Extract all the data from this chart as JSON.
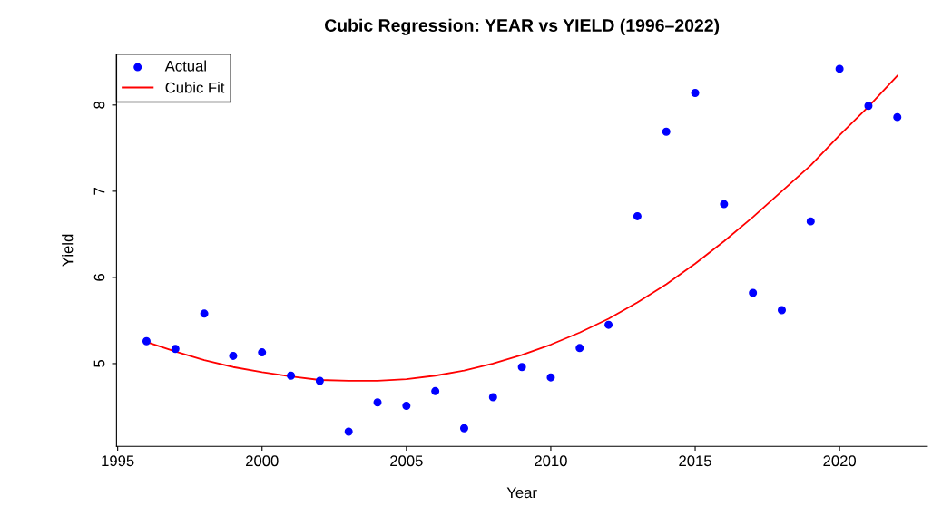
{
  "chart_data": {
    "type": "scatter",
    "title": "Cubic Regression: YEAR vs YIELD (1996–2022)",
    "xlabel": "Year",
    "ylabel": "Yield",
    "xlim": [
      1994.96,
      2023.04
    ],
    "ylim": [
      4.04,
      8.59
    ],
    "xticks": [
      1995,
      2000,
      2005,
      2010,
      2015,
      2020
    ],
    "yticks": [
      5,
      6,
      7,
      8
    ],
    "grid": false,
    "legend": "top left",
    "series": [
      {
        "name": "Actual",
        "marker": "circle",
        "color": "#0000ff",
        "x": [
          1996,
          1997,
          1998,
          1999,
          2000,
          2001,
          2002,
          2003,
          2004,
          2005,
          2006,
          2007,
          2008,
          2009,
          2010,
          2011,
          2012,
          2013,
          2014,
          2015,
          2016,
          2017,
          2018,
          2019,
          2020,
          2021,
          2022
        ],
        "values": [
          5.26,
          5.17,
          5.58,
          5.09,
          5.13,
          4.86,
          4.8,
          4.21,
          4.55,
          4.51,
          4.68,
          4.25,
          4.61,
          4.96,
          4.84,
          5.18,
          5.45,
          6.71,
          7.69,
          8.14,
          6.85,
          5.82,
          5.62,
          6.65,
          8.42,
          7.99,
          7.86
        ]
      },
      {
        "name": "Cubic Fit",
        "type": "line",
        "marker": "none",
        "line_style": "solid",
        "color": "#ff0000",
        "x": [
          1996,
          1997,
          1998,
          1999,
          2000,
          2001,
          2002,
          2003,
          2004,
          2005,
          2006,
          2007,
          2008,
          2009,
          2010,
          2011,
          2012,
          2013,
          2014,
          2015,
          2016,
          2017,
          2018,
          2019,
          2020,
          2021,
          2022
        ],
        "values": [
          5.25,
          5.14,
          5.04,
          4.96,
          4.9,
          4.85,
          4.81,
          4.8,
          4.8,
          4.82,
          4.86,
          4.92,
          5.0,
          5.1,
          5.22,
          5.36,
          5.52,
          5.71,
          5.92,
          6.16,
          6.42,
          6.7,
          7.0,
          7.3,
          7.65,
          7.98,
          8.34
        ]
      }
    ]
  }
}
